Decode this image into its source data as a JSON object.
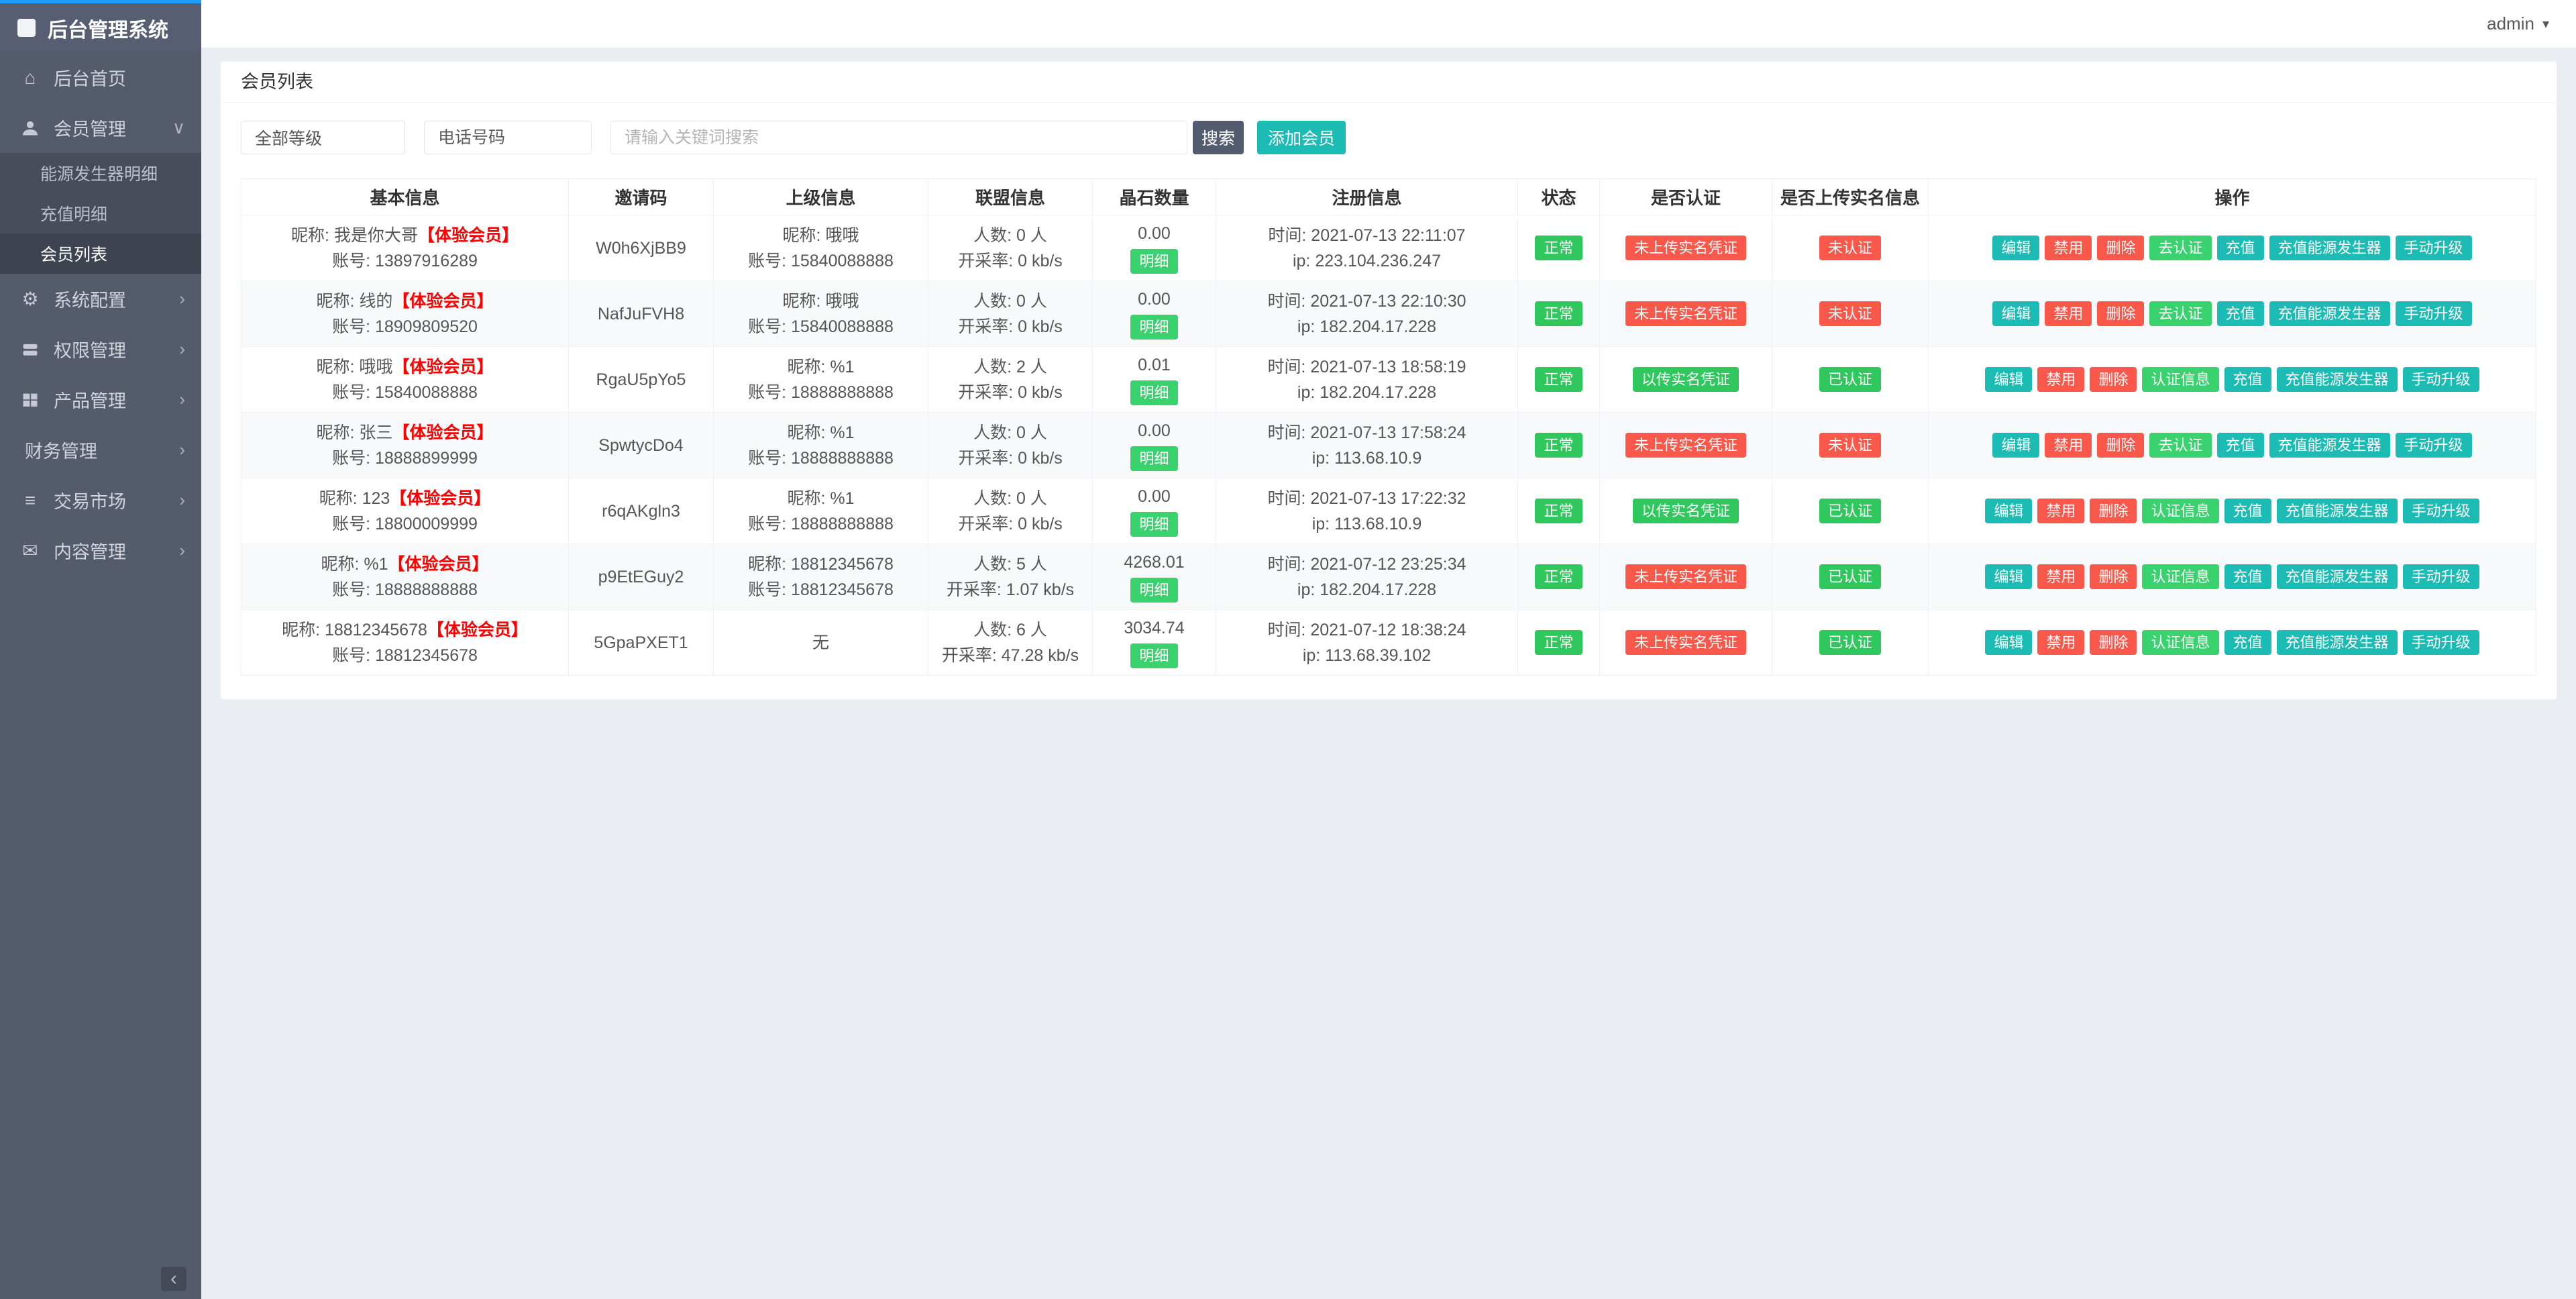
{
  "theme": {
    "blue": "#1e9fff",
    "teal": "#1cbbb4",
    "green": "#30c85e",
    "btn-green": "#3ad16f",
    "red": "#f9584b",
    "vip-red": "#ff0000",
    "sidebar-bg": "#545b6a",
    "sidebar-logo-bg": "#585e72",
    "submenu-bg": "#474d5a",
    "submenu-active-bg": "#3d434f",
    "search-btn": "#535b6e",
    "content-bg": "#eaedf1"
  },
  "app": {
    "logo_title": "后台管理系统",
    "user": "admin"
  },
  "sidebar": {
    "items": [
      {
        "label": "后台首页",
        "icon": "home-icon"
      },
      {
        "label": "会员管理",
        "icon": "user-icon",
        "chevron": "∨"
      },
      {
        "label": "系统配置",
        "icon": "gears-icon",
        "chevron": "›"
      },
      {
        "label": "权限管理",
        "icon": "server-icon",
        "chevron": "›"
      },
      {
        "label": "产品管理",
        "icon": "grid-icon",
        "chevron": "›"
      },
      {
        "label": "财务管理",
        "chevron": "›"
      },
      {
        "label": "交易市场",
        "icon": "list-icon",
        "chevron": "›"
      },
      {
        "label": "内容管理",
        "icon": "mail-icon",
        "chevron": "›"
      }
    ],
    "submenu": [
      {
        "label": "能源发生器明细",
        "active": false
      },
      {
        "label": "充值明细",
        "active": false
      },
      {
        "label": "会员列表",
        "active": true
      }
    ],
    "collapse_glyph": "‹"
  },
  "page": {
    "title": "会员列表"
  },
  "filters": {
    "level_value": "全部等级",
    "tel_placeholder": "电话号码",
    "keyword_placeholder": "请输入关键词搜索",
    "search_label": "搜索",
    "add_member_label": "添加会员"
  },
  "table": {
    "headers": [
      "基本信息",
      "邀请码",
      "上级信息",
      "联盟信息",
      "晶石数量",
      "注册信息",
      "状态",
      "是否认证",
      "是否上传实名信息",
      "操作"
    ],
    "labels": {
      "nickname": "昵称: ",
      "account": "账号: ",
      "count": "人数: ",
      "rate": "开采率: ",
      "time": "时间: ",
      "ip": "ip: "
    },
    "none_label": "无",
    "detail_label": "明细",
    "action_defs": {
      "edit": {
        "label": "编辑",
        "color": "teal",
        "name": "edit-button"
      },
      "disable": {
        "label": "禁用",
        "color": "red",
        "name": "disable-button"
      },
      "delete": {
        "label": "删除",
        "color": "red",
        "name": "delete-button"
      },
      "certify": {
        "label": "去认证",
        "color": "green",
        "name": "go-certify-button"
      },
      "certinfo": {
        "label": "认证信息",
        "color": "green",
        "name": "cert-info-button"
      },
      "recharge": {
        "label": "充值",
        "color": "teal",
        "name": "recharge-button"
      },
      "recharge_gen": {
        "label": "充值能源发生器",
        "color": "teal",
        "name": "recharge-generator-button"
      },
      "upgrade": {
        "label": "手动升级",
        "color": "teal",
        "name": "manual-upgrade-button"
      }
    },
    "rows": [
      {
        "nickname": "我是你大哥",
        "level": "【体验会员】",
        "account": "13897916289",
        "invite_code": "W0h6XjBB9",
        "parent": {
          "nickname": "哦哦",
          "account": "15840088888"
        },
        "alliance": {
          "count": "0 人",
          "rate": "0 kb/s"
        },
        "crystal": "0.00",
        "reg": {
          "time": "2021-07-13 22:11:07",
          "ip": "223.104.236.247"
        },
        "status": "正常",
        "cert": {
          "label": "未上传实名凭证",
          "ok": false
        },
        "realname": {
          "label": "未认证",
          "ok": false
        },
        "actions": [
          "edit",
          "disable",
          "delete",
          "certify",
          "recharge",
          "recharge_gen",
          "upgrade"
        ]
      },
      {
        "nickname": "线的",
        "level": "【体验会员】",
        "account": "18909809520",
        "invite_code": "NafJuFVH8",
        "parent": {
          "nickname": "哦哦",
          "account": "15840088888"
        },
        "alliance": {
          "count": "0 人",
          "rate": "0 kb/s"
        },
        "crystal": "0.00",
        "reg": {
          "time": "2021-07-13 22:10:30",
          "ip": "182.204.17.228"
        },
        "status": "正常",
        "cert": {
          "label": "未上传实名凭证",
          "ok": false
        },
        "realname": {
          "label": "未认证",
          "ok": false
        },
        "actions": [
          "edit",
          "disable",
          "delete",
          "certify",
          "recharge",
          "recharge_gen",
          "upgrade"
        ]
      },
      {
        "nickname": "哦哦",
        "level": "【体验会员】",
        "account": "15840088888",
        "invite_code": "RgaU5pYo5",
        "parent": {
          "nickname": "%1",
          "account": "18888888888"
        },
        "alliance": {
          "count": "2 人",
          "rate": "0 kb/s"
        },
        "crystal": "0.01",
        "reg": {
          "time": "2021-07-13 18:58:19",
          "ip": "182.204.17.228"
        },
        "status": "正常",
        "cert": {
          "label": "以传实名凭证",
          "ok": true
        },
        "realname": {
          "label": "已认证",
          "ok": true
        },
        "actions": [
          "edit",
          "disable",
          "delete",
          "certinfo",
          "recharge",
          "recharge_gen",
          "upgrade"
        ]
      },
      {
        "nickname": "张三",
        "level": "【体验会员】",
        "account": "18888899999",
        "invite_code": "SpwtycDo4",
        "parent": {
          "nickname": "%1",
          "account": "18888888888"
        },
        "alliance": {
          "count": "0 人",
          "rate": "0 kb/s"
        },
        "crystal": "0.00",
        "reg": {
          "time": "2021-07-13 17:58:24",
          "ip": "113.68.10.9"
        },
        "status": "正常",
        "cert": {
          "label": "未上传实名凭证",
          "ok": false
        },
        "realname": {
          "label": "未认证",
          "ok": false
        },
        "actions": [
          "edit",
          "disable",
          "delete",
          "certify",
          "recharge",
          "recharge_gen",
          "upgrade"
        ]
      },
      {
        "nickname": "123",
        "level": "【体验会员】",
        "account": "18800009999",
        "invite_code": "r6qAKgln3",
        "parent": {
          "nickname": "%1",
          "account": "18888888888"
        },
        "alliance": {
          "count": "0 人",
          "rate": "0 kb/s"
        },
        "crystal": "0.00",
        "reg": {
          "time": "2021-07-13 17:22:32",
          "ip": "113.68.10.9"
        },
        "status": "正常",
        "cert": {
          "label": "以传实名凭证",
          "ok": true
        },
        "realname": {
          "label": "已认证",
          "ok": true
        },
        "actions": [
          "edit",
          "disable",
          "delete",
          "certinfo",
          "recharge",
          "recharge_gen",
          "upgrade"
        ]
      },
      {
        "nickname": "%1",
        "level": "【体验会员】",
        "account": "18888888888",
        "invite_code": "p9EtEGuy2",
        "parent": {
          "nickname": "18812345678",
          "account": "18812345678"
        },
        "alliance": {
          "count": "5 人",
          "rate": "1.07 kb/s"
        },
        "crystal": "4268.01",
        "reg": {
          "time": "2021-07-12 23:25:34",
          "ip": "182.204.17.228"
        },
        "status": "正常",
        "cert": {
          "label": "未上传实名凭证",
          "ok": false
        },
        "realname": {
          "label": "已认证",
          "ok": true
        },
        "actions": [
          "edit",
          "disable",
          "delete",
          "certinfo",
          "recharge",
          "recharge_gen",
          "upgrade"
        ]
      },
      {
        "nickname": "18812345678",
        "level": "【体验会员】",
        "account": "18812345678",
        "invite_code": "5GpaPXET1",
        "parent": null,
        "alliance": {
          "count": "6 人",
          "rate": "47.28 kb/s"
        },
        "crystal": "3034.74",
        "reg": {
          "time": "2021-07-12 18:38:24",
          "ip": "113.68.39.102"
        },
        "status": "正常",
        "cert": {
          "label": "未上传实名凭证",
          "ok": false
        },
        "realname": {
          "label": "已认证",
          "ok": true
        },
        "actions": [
          "edit",
          "disable",
          "delete",
          "certinfo",
          "recharge",
          "recharge_gen",
          "upgrade"
        ]
      }
    ]
  }
}
